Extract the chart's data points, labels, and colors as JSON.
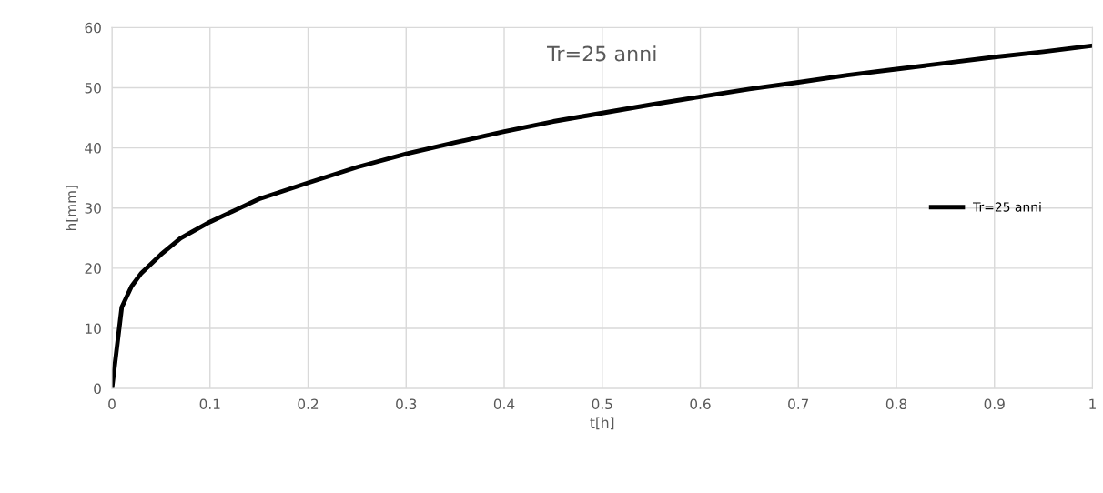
{
  "chart_data": {
    "type": "line",
    "title": "Tr=25 anni",
    "xlabel": "t[h]",
    "ylabel": "h[mm]",
    "x": [
      0,
      0.01,
      0.02,
      0.03,
      0.05,
      0.07,
      0.1,
      0.15,
      0.2,
      0.25,
      0.3,
      0.35,
      0.4,
      0.45,
      0.5,
      0.55,
      0.6,
      0.65,
      0.7,
      0.75,
      0.8,
      0.85,
      0.9,
      0.95,
      1.0
    ],
    "series": [
      {
        "name": "Tr=25 anni",
        "color": "#000000",
        "values": [
          0,
          13.5,
          17,
          19.2,
          22.3,
          25,
          27.7,
          31.5,
          34.2,
          36.8,
          39,
          40.9,
          42.7,
          44.4,
          45.8,
          47.2,
          48.5,
          49.8,
          50.9,
          52.1,
          53.1,
          54.1,
          55.1,
          56,
          57
        ]
      }
    ],
    "xlim": [
      0,
      1
    ],
    "ylim": [
      0,
      60
    ],
    "xticks": [
      0,
      0.1,
      0.2,
      0.3,
      0.4,
      0.5,
      0.6,
      0.7,
      0.8,
      0.9,
      1
    ],
    "yticks": [
      0,
      10,
      20,
      30,
      40,
      50,
      60
    ],
    "grid": true,
    "legend": "center right",
    "marker": "none",
    "line_style": "solid"
  }
}
